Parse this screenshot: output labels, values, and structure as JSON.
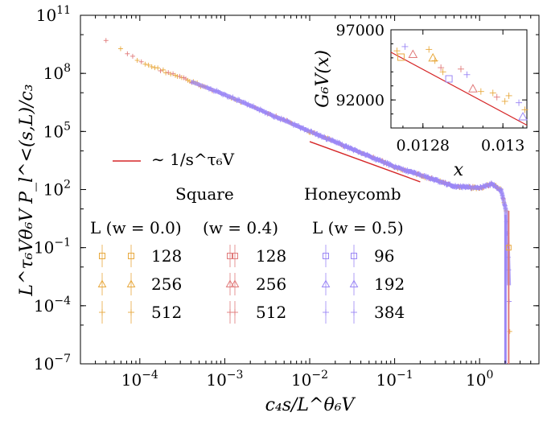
{
  "chart_data": {
    "type": "scatter",
    "xscale": "log",
    "yscale": "log",
    "xlim": [
      2e-05,
      5
    ],
    "ylim": [
      1e-07,
      100000000000.0
    ],
    "xlabel": "c₄s/L^θ₆V",
    "ylabel": "L^τ₆Vθ₆V P_l^<(s,L)/c₃",
    "x_ticks": [
      {
        "value": 0.0001,
        "base": "10",
        "exp": "−4"
      },
      {
        "value": 0.001,
        "base": "10",
        "exp": "−3"
      },
      {
        "value": 0.01,
        "base": "10",
        "exp": "−2"
      },
      {
        "value": 0.1,
        "base": "10",
        "exp": "−1"
      },
      {
        "value": 1,
        "base": "10",
        "exp": "0"
      }
    ],
    "y_ticks": [
      {
        "value": 1e-07,
        "base": "10",
        "exp": "−7"
      },
      {
        "value": 0.0001,
        "base": "10",
        "exp": "−4"
      },
      {
        "value": 0.1,
        "base": "10",
        "exp": "−1"
      },
      {
        "value": 100,
        "base": "10",
        "exp": "2"
      },
      {
        "value": 100000,
        "base": "10",
        "exp": "5"
      },
      {
        "value": 100000000,
        "base": "10",
        "exp": "8"
      },
      {
        "value": 100000000000,
        "base": "10",
        "exp": "11"
      }
    ],
    "guide_line": {
      "label": "∼ 1/s^τ₆V",
      "x": [
        0.01,
        0.2
      ],
      "y": [
        30000,
        250
      ],
      "color": "#d62728"
    },
    "collapse": {
      "x": [
        4e-05,
        0.0001,
        0.001,
        0.01,
        0.1,
        0.5,
        1,
        1.4,
        1.8,
        2.05,
        2.2,
        2.3
      ],
      "y": [
        5000000000.0,
        400000000.0,
        8000000.0,
        100000.0,
        1500,
        150,
        120,
        200,
        90,
        8,
        0.01,
        1e-07
      ]
    },
    "series": [
      {
        "lattice": "Square",
        "w": "0.0",
        "L": "128",
        "marker": "square",
        "color": "#e8a93e"
      },
      {
        "lattice": "Square",
        "w": "0.0",
        "L": "256",
        "marker": "triangle",
        "color": "#e8a93e"
      },
      {
        "lattice": "Square",
        "w": "0.0",
        "L": "512",
        "marker": "plus",
        "color": "#e8a93e"
      },
      {
        "lattice": "Square",
        "w": "0.4",
        "L": "128",
        "marker": "square",
        "color": "#e07a7a"
      },
      {
        "lattice": "Square",
        "w": "0.4",
        "L": "256",
        "marker": "triangle",
        "color": "#e07a7a"
      },
      {
        "lattice": "Square",
        "w": "0.4",
        "L": "512",
        "marker": "plus",
        "color": "#e07a7a"
      },
      {
        "lattice": "Honeycomb",
        "w": "0.5",
        "L": "96",
        "marker": "square",
        "color": "#9b87f5"
      },
      {
        "lattice": "Honeycomb",
        "w": "0.5",
        "L": "192",
        "marker": "triangle",
        "color": "#9b87f5"
      },
      {
        "lattice": "Honeycomb",
        "w": "0.5",
        "L": "384",
        "marker": "plus",
        "color": "#9b87f5"
      }
    ],
    "legend": {
      "square_label": "Square",
      "honeycomb_label": "Honeycomb",
      "col_headers": [
        "L (w = 0.0)",
        "(w = 0.4)",
        "L (w = 0.5)"
      ]
    },
    "inset": {
      "xlabel": "x",
      "ylabel": "G₆V(x)",
      "xlim": [
        0.01272,
        0.01306
      ],
      "ylim": [
        90000,
        97000
      ],
      "x_ticks": [
        {
          "value": 0.0128,
          "label": "0.0128"
        },
        {
          "value": 0.013,
          "label": "0.013"
        }
      ],
      "y_ticks": [
        {
          "value": 92000,
          "label": "92000"
        },
        {
          "value": 97000,
          "label": "97000"
        }
      ],
      "line": {
        "x": [
          0.01272,
          0.01306
        ],
        "y": [
          95400,
          90200
        ]
      },
      "points": [
        {
          "x": 0.012745,
          "y": 95050,
          "marker": "square",
          "color": "#e8a93e"
        },
        {
          "x": 0.012735,
          "y": 95500,
          "marker": "plus",
          "color": "#e8a93e"
        },
        {
          "x": 0.012755,
          "y": 95800,
          "marker": "plus",
          "color": "#9b87f5"
        },
        {
          "x": 0.012775,
          "y": 95250,
          "marker": "triangle",
          "color": "#e07a7a"
        },
        {
          "x": 0.012815,
          "y": 95600,
          "marker": "plus",
          "color": "#e8a93e"
        },
        {
          "x": 0.012825,
          "y": 95000,
          "marker": "triangle",
          "color": "#e8a93e"
        },
        {
          "x": 0.01283,
          "y": 94800,
          "marker": "plus",
          "color": "#e8a93e"
        },
        {
          "x": 0.012845,
          "y": 94300,
          "marker": "plus",
          "color": "#e07a7a"
        },
        {
          "x": 0.01285,
          "y": 94000,
          "marker": "plus",
          "color": "#e8a93e"
        },
        {
          "x": 0.012865,
          "y": 93500,
          "marker": "square",
          "color": "#9b87f5"
        },
        {
          "x": 0.012895,
          "y": 94200,
          "marker": "plus",
          "color": "#e07a7a"
        },
        {
          "x": 0.01291,
          "y": 93800,
          "marker": "plus",
          "color": "#9b87f5"
        },
        {
          "x": 0.012925,
          "y": 92800,
          "marker": "triangle",
          "color": "#e07a7a"
        },
        {
          "x": 0.012945,
          "y": 92600,
          "marker": "plus",
          "color": "#e8a93e"
        },
        {
          "x": 0.012975,
          "y": 92500,
          "marker": "plus",
          "color": "#e8a93e"
        },
        {
          "x": 0.012985,
          "y": 92200,
          "marker": "plus",
          "color": "#e07a7a"
        },
        {
          "x": 0.013005,
          "y": 91900,
          "marker": "plus",
          "color": "#e8a93e"
        },
        {
          "x": 0.013015,
          "y": 92300,
          "marker": "plus",
          "color": "#e8a93e"
        },
        {
          "x": 0.01304,
          "y": 91800,
          "marker": "plus",
          "color": "#9b87f5"
        },
        {
          "x": 0.01305,
          "y": 90800,
          "marker": "triangle",
          "color": "#9b87f5"
        },
        {
          "x": 0.013055,
          "y": 91300,
          "marker": "plus",
          "color": "#e8a93e"
        }
      ]
    }
  }
}
